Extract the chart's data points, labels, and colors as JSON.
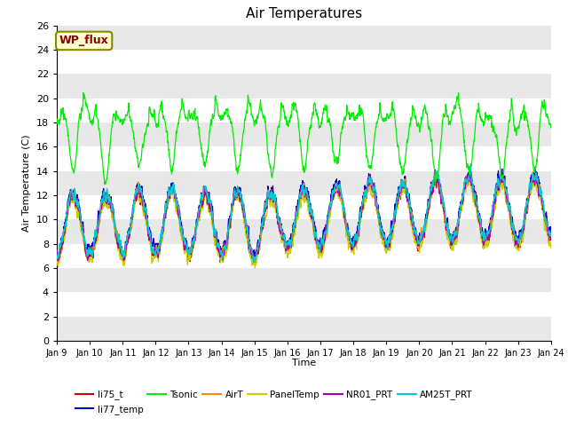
{
  "title": "Air Temperatures",
  "xlabel": "Time",
  "ylabel": "Air Temperature (C)",
  "ylim": [
    0,
    26
  ],
  "yticks": [
    0,
    2,
    4,
    6,
    8,
    10,
    12,
    14,
    16,
    18,
    20,
    22,
    24,
    26
  ],
  "xtick_labels": [
    "Jan 9",
    "Jan 10",
    "Jan 11",
    "Jan 12",
    "Jan 13",
    "Jan 14",
    "Jan 15",
    "Jan 16",
    "Jan 17",
    "Jan 18",
    "Jan 19",
    "Jan 20",
    "Jan 21",
    "Jan 22",
    "Jan 23",
    "Jan 24"
  ],
  "series_colors": {
    "li75_t": "#cc0000",
    "li77_temp": "#0000cc",
    "Tsonic": "#00ee00",
    "AirT": "#ff8800",
    "PanelTemp": "#cccc00",
    "NR01_PRT": "#aa00aa",
    "AM25T_PRT": "#00cccc"
  },
  "wp_flux_box": {
    "text": "WP_flux",
    "facecolor": "#ffffcc",
    "edgecolor": "#888800",
    "textcolor": "#880000",
    "fontsize": 9,
    "fontweight": "bold"
  },
  "background_color": "#ffffff",
  "band_colors": [
    "#e8e8e8",
    "#ffffff"
  ],
  "n_points": 2000
}
